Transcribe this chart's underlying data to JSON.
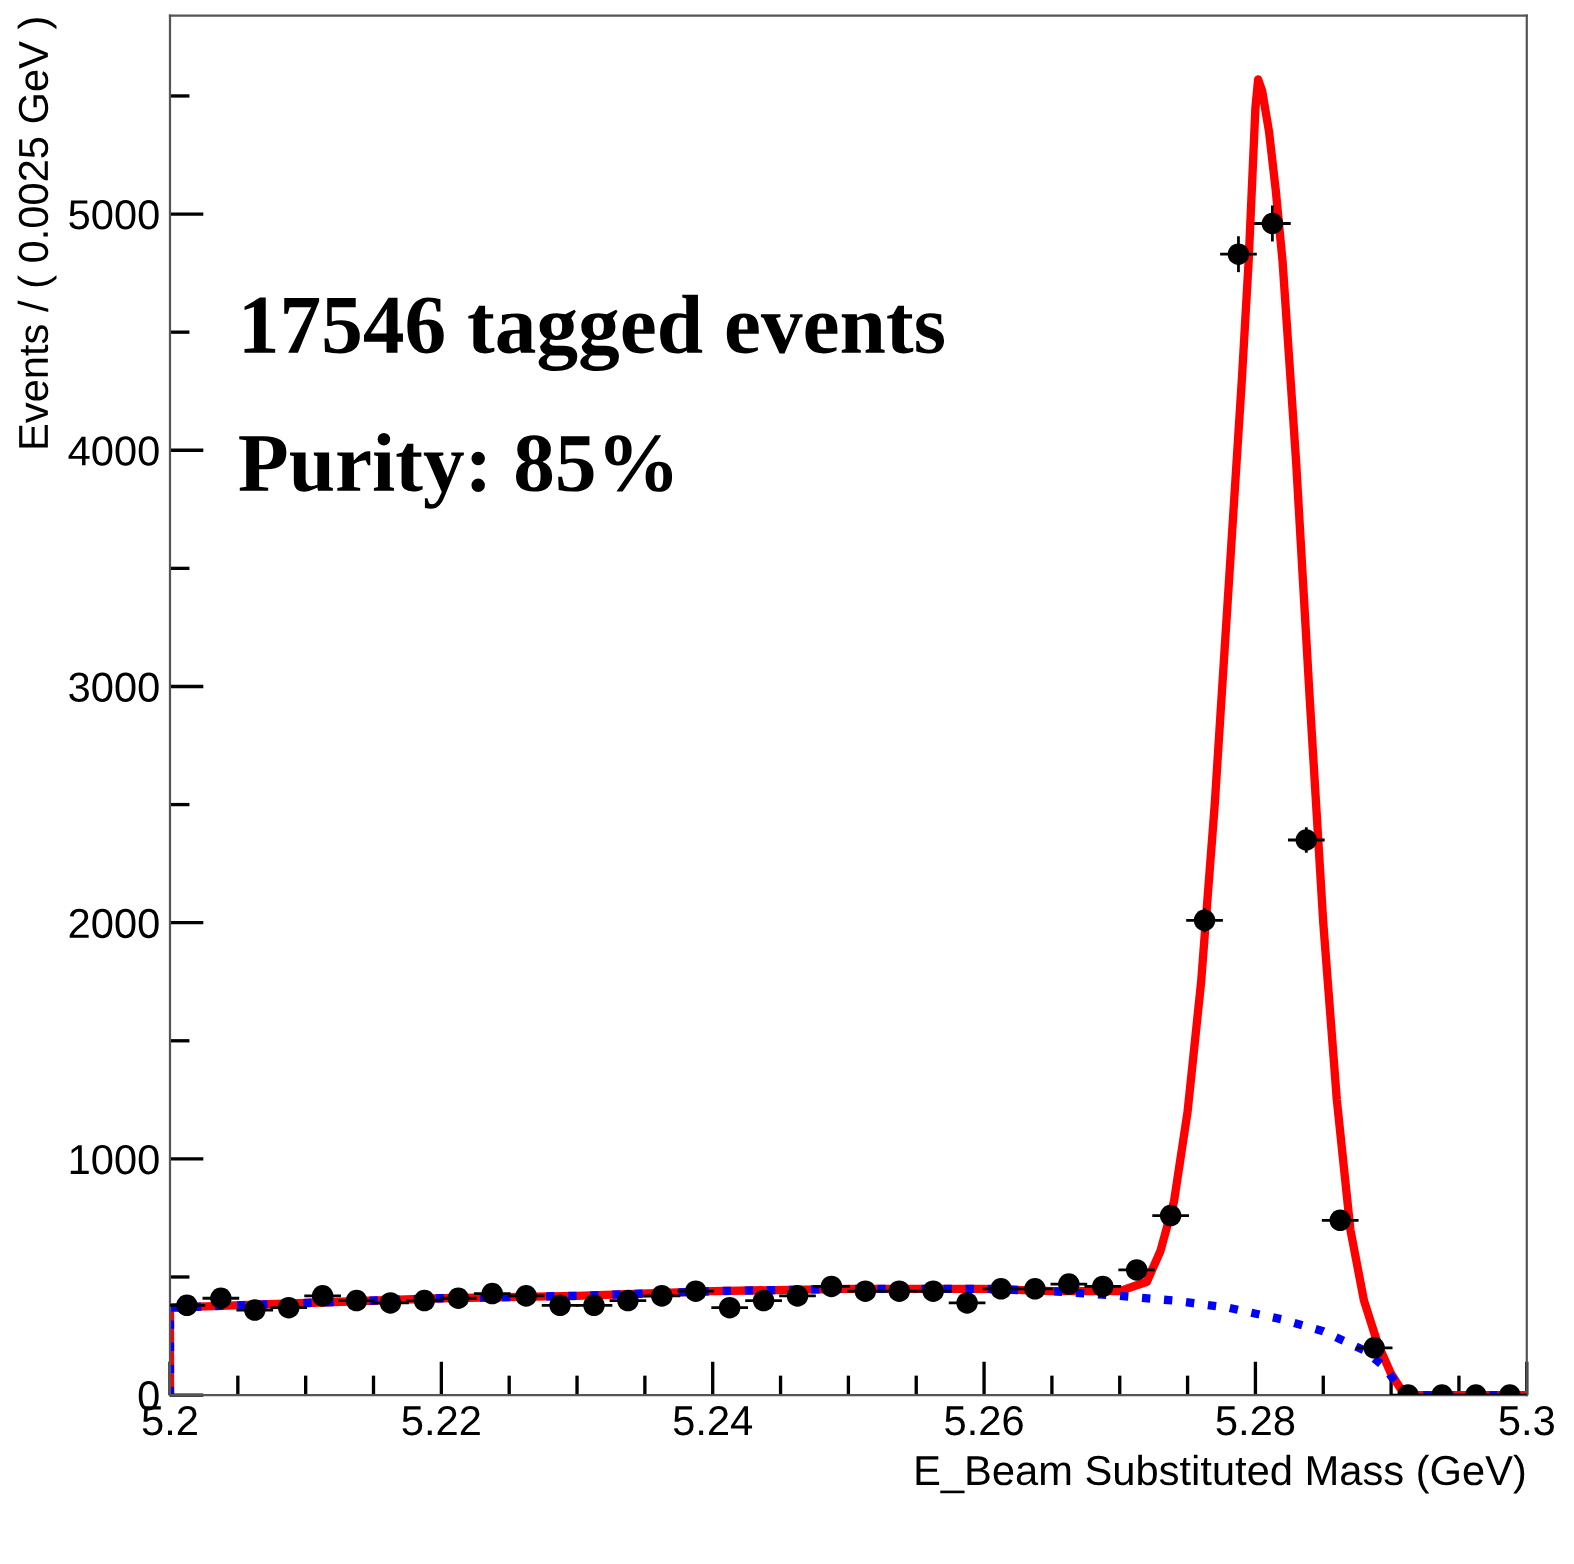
{
  "chart_data": {
    "type": "scatter",
    "xlabel": "E_Beam Substituted Mass (GeV)",
    "ylabel": "Events / ( 0.0025 GeV )",
    "annotations": [
      "17546 tagged events",
      "Purity: 85%"
    ],
    "xlim": [
      5.2,
      5.3
    ],
    "ylim": [
      0,
      5840
    ],
    "xticks": [
      5.2,
      {
        "value": 5.205,
        "label": null
      },
      {
        "value": 5.21,
        "label": null
      },
      {
        "value": 5.215,
        "label": null
      },
      5.22,
      {
        "value": 5.225,
        "label": null
      },
      {
        "value": 5.23,
        "label": null
      },
      {
        "value": 5.235,
        "label": null
      },
      5.24,
      {
        "value": 5.245,
        "label": null
      },
      {
        "value": 5.25,
        "label": null
      },
      {
        "value": 5.255,
        "label": null
      },
      5.26,
      {
        "value": 5.265,
        "label": null
      },
      {
        "value": 5.27,
        "label": null
      },
      {
        "value": 5.275,
        "label": null
      },
      5.28,
      {
        "value": 5.285,
        "label": null
      },
      {
        "value": 5.29,
        "label": null
      },
      {
        "value": 5.295,
        "label": null
      },
      5.3
    ],
    "yticks": [
      0,
      {
        "value": 500,
        "label": null
      },
      1000,
      {
        "value": 1500,
        "label": null
      },
      2000,
      {
        "value": 2500,
        "label": null
      },
      3000,
      {
        "value": 3500,
        "label": null
      },
      4000,
      {
        "value": 4500,
        "label": null
      },
      5000,
      {
        "value": 5500,
        "label": null
      }
    ],
    "grid": false,
    "legend": false,
    "series": [
      {
        "type": "line",
        "color": "#0000ff",
        "line_style": "dotted",
        "marker": "none",
        "x": [
          5.2,
          5.2,
          5.21,
          5.22,
          5.23,
          5.24,
          5.25,
          5.26,
          5.265,
          5.27,
          5.274,
          5.278,
          5.282,
          5.285,
          5.288,
          5.2895,
          5.291,
          5.3
        ],
        "values": [
          0,
          370,
          390,
          410,
          420,
          440,
          450,
          450,
          440,
          420,
          400,
          370,
          320,
          270,
          190,
          120,
          0,
          0
        ]
      },
      {
        "type": "line",
        "color": "#ff0000",
        "line_style": "solid",
        "marker": "none",
        "x": [
          5.2,
          5.2,
          5.21,
          5.22,
          5.23,
          5.24,
          5.25,
          5.26,
          5.265,
          5.27,
          5.272,
          5.273,
          5.274,
          5.275,
          5.276,
          5.277,
          5.278,
          5.279,
          5.2795,
          5.28,
          5.2802,
          5.2805,
          5.281,
          5.2815,
          5.282,
          5.283,
          5.284,
          5.285,
          5.286,
          5.287,
          5.288,
          5.289,
          5.29,
          5.291,
          5.3
        ],
        "values": [
          0,
          370,
          390,
          410,
          420,
          440,
          450,
          450,
          440,
          440,
          480,
          610,
          820,
          1200,
          1750,
          2500,
          3400,
          4300,
          4800,
          5450,
          5570,
          5520,
          5350,
          5100,
          4800,
          3950,
          2950,
          2000,
          1250,
          700,
          400,
          220,
          90,
          0,
          0
        ]
      },
      {
        "color": "#000000",
        "marker": "circle",
        "x": [
          5.20125,
          5.20375,
          5.20625,
          5.20875,
          5.21125,
          5.21375,
          5.21625,
          5.21875,
          5.22125,
          5.22375,
          5.22625,
          5.22875,
          5.23125,
          5.23375,
          5.23625,
          5.23875,
          5.24125,
          5.24375,
          5.24625,
          5.24875,
          5.25125,
          5.25375,
          5.25625,
          5.25875,
          5.26125,
          5.26375,
          5.26625,
          5.26875,
          5.27125,
          5.27375,
          5.27625,
          5.27875,
          5.28125,
          5.28375,
          5.28625,
          5.28875,
          5.29125,
          5.29375,
          5.29625,
          5.29875
        ],
        "values": [
          380,
          410,
          360,
          370,
          420,
          400,
          390,
          400,
          410,
          430,
          420,
          380,
          380,
          400,
          420,
          440,
          370,
          400,
          420,
          460,
          440,
          440,
          440,
          390,
          450,
          450,
          470,
          460,
          530,
          760,
          2010,
          4830,
          4960,
          2350,
          740,
          200,
          0,
          0,
          0,
          0
        ],
        "xerrors": [
          0.00125,
          0.00125,
          0.00125,
          0.00125,
          0.00125,
          0.00125,
          0.00125,
          0.00125,
          0.00125,
          0.00125,
          0.00125,
          0.00125,
          0.00125,
          0.00125,
          0.00125,
          0.00125,
          0.00125,
          0.00125,
          0.00125,
          0.00125,
          0.00125,
          0.00125,
          0.00125,
          0.00125,
          0.00125,
          0.00125,
          0.00125,
          0.00125,
          0.00125,
          0.00125,
          0.00125,
          0.00125,
          0.00125,
          0.00125,
          0.00125,
          0.00125,
          0.00125,
          0.00125,
          0.00125,
          0.00125
        ],
        "errors": [
          20,
          20,
          20,
          20,
          20,
          20,
          20,
          20,
          20,
          20,
          20,
          20,
          20,
          20,
          20,
          20,
          20,
          20,
          20,
          20,
          20,
          20,
          20,
          20,
          20,
          20,
          20,
          20,
          23,
          28,
          45,
          70,
          70,
          48,
          27,
          14,
          null,
          null,
          null,
          null
        ]
      }
    ]
  }
}
